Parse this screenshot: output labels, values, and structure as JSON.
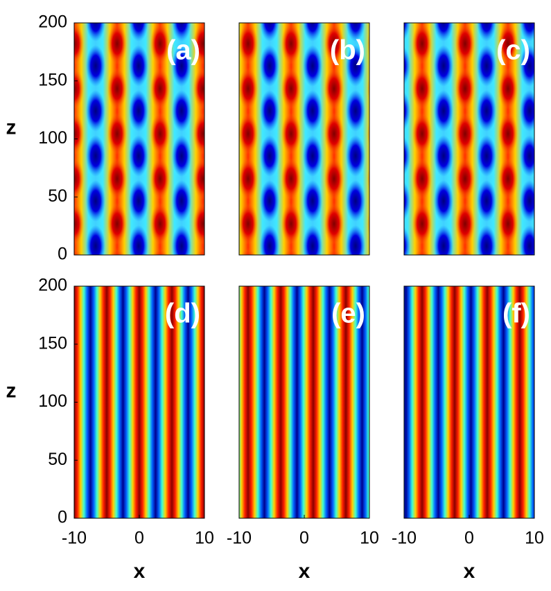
{
  "chart_data": [
    {
      "type": "heatmap",
      "label": "(a)",
      "ylabel": "z",
      "xlim": [
        -10,
        10
      ],
      "ylim": [
        0,
        200
      ],
      "yticks": [
        0,
        50,
        100,
        150,
        200
      ]
    },
    {
      "type": "heatmap",
      "label": "(b)",
      "xlim": [
        -10,
        10
      ],
      "ylim": [
        0,
        200
      ]
    },
    {
      "type": "heatmap",
      "label": "(c)",
      "xlim": [
        -10,
        10
      ],
      "ylim": [
        0,
        200
      ]
    },
    {
      "type": "heatmap",
      "label": "(d)",
      "ylabel": "z",
      "xlabel": "x",
      "xlim": [
        -10,
        10
      ],
      "ylim": [
        0,
        200
      ],
      "yticks": [
        0,
        50,
        100,
        150,
        200
      ],
      "xticks": [
        -10,
        0,
        10
      ]
    },
    {
      "type": "heatmap",
      "label": "(e)",
      "xlabel": "x",
      "xlim": [
        -10,
        10
      ],
      "ylim": [
        0,
        200
      ],
      "xticks": [
        -10,
        0,
        10
      ]
    },
    {
      "type": "heatmap",
      "label": "(f)",
      "xlabel": "x",
      "xlim": [
        -10,
        10
      ],
      "ylim": [
        0,
        200
      ],
      "xticks": [
        -10,
        0,
        10
      ]
    }
  ]
}
